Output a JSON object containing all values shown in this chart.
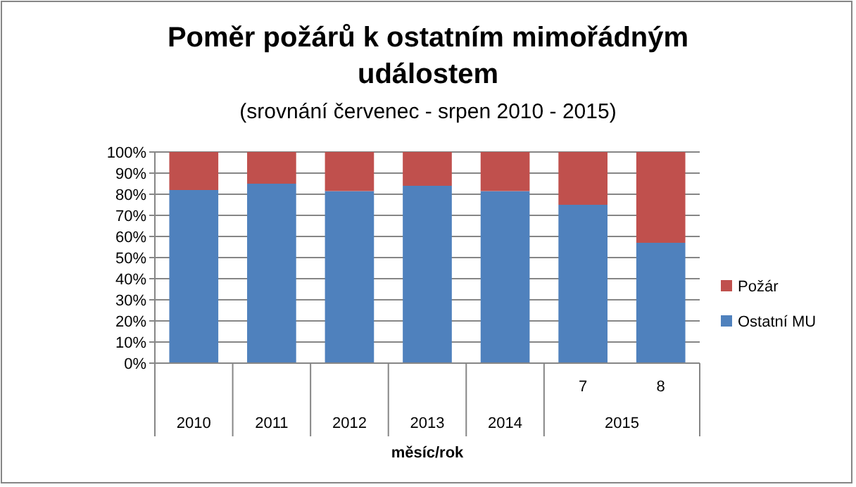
{
  "chart_data": {
    "type": "bar",
    "stacked": true,
    "title": "Poměr požárů k ostatním mimořádným událostem",
    "subtitle": "(srovnání červenec - srpen 2010 - 2015)",
    "xlabel": "měsíc/rok",
    "categories": [
      "2010",
      "2011",
      "2012",
      "2013",
      "2014",
      "7",
      "8"
    ],
    "series": [
      {
        "name": "Ostatní MU",
        "color": "#4f81bd",
        "values": [
          82,
          85,
          81.5,
          84,
          81.5,
          75,
          57
        ]
      },
      {
        "name": "Požár",
        "color": "#c0504d",
        "values": [
          18,
          15,
          18.5,
          16,
          18.5,
          25,
          43
        ]
      }
    ],
    "ylim": [
      0,
      100
    ],
    "yticks": [
      {
        "value": 0,
        "label": "0%"
      },
      {
        "value": 10,
        "label": "10%"
      },
      {
        "value": 20,
        "label": "20%"
      },
      {
        "value": 30,
        "label": "30%"
      },
      {
        "value": 40,
        "label": "40%"
      },
      {
        "value": 50,
        "label": "50%"
      },
      {
        "value": 60,
        "label": "60%"
      },
      {
        "value": 70,
        "label": "70%"
      },
      {
        "value": 80,
        "label": "80%"
      },
      {
        "value": 90,
        "label": "90%"
      },
      {
        "value": 100,
        "label": "100%"
      }
    ],
    "annotations": [
      "2015"
    ],
    "grid": "y",
    "legend": "right"
  }
}
